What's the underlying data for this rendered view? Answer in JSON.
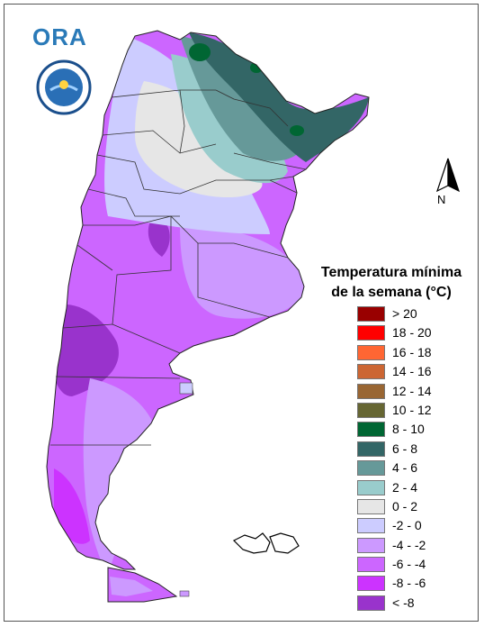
{
  "logo": {
    "ora_text": "ORA"
  },
  "north_label": "N",
  "legend": {
    "title_line1": "Temperatura mínima",
    "title_line2": "de la semana (°C)",
    "items": [
      {
        "label": "> 20",
        "color": "#990000"
      },
      {
        "label": "18 - 20",
        "color": "#ff0000"
      },
      {
        "label": "16 - 18",
        "color": "#ff6633"
      },
      {
        "label": "14 - 16",
        "color": "#cc6633"
      },
      {
        "label": "12 - 14",
        "color": "#996633"
      },
      {
        "label": "10 - 12",
        "color": "#666633"
      },
      {
        "label": "8 - 10",
        "color": "#006633"
      },
      {
        "label": "6 - 8",
        "color": "#336666"
      },
      {
        "label": "4 - 6",
        "color": "#669999"
      },
      {
        "label": "2 - 4",
        "color": "#99cccc"
      },
      {
        "label": "0 - 2",
        "color": "#e6e6e6"
      },
      {
        "label": "-2 - 0",
        "color": "#ccccff"
      },
      {
        "label": "-4 - -2",
        "color": "#cc99ff"
      },
      {
        "label": "-6 - -4",
        "color": "#cc66ff"
      },
      {
        "label": "-8 - -6",
        "color": "#cc33ff"
      },
      {
        "label": "< -8",
        "color": "#9933cc"
      }
    ]
  }
}
